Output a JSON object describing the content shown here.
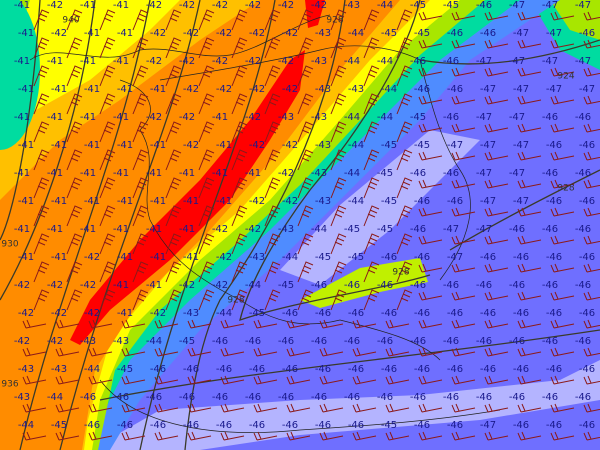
{
  "map": {
    "colors": {
      "background": "#6f6fff",
      "lavender": "#b4b4ff",
      "blue": "#4f8cff",
      "teal": "#00dca0",
      "lime": "#a8e600",
      "yellow": "#ffff00",
      "light_orange": "#ffc000",
      "orange": "#ff8c00",
      "red": "#ff0000",
      "contour": "#3a3a2a",
      "wind_barb": "#8b1a1a",
      "label": "#1a1a8c"
    },
    "contour_labels": [
      "940",
      "928",
      "924",
      "928",
      "930",
      "936",
      "928",
      "928"
    ],
    "temperature_rows": [
      [
        -41,
        -42,
        -41,
        -41,
        -42,
        -42,
        -42,
        -42,
        -42,
        -42,
        -43,
        -44,
        -45,
        -45,
        -46,
        -47,
        -47,
        -47
      ],
      [
        -41,
        -42,
        -41,
        -41,
        -42,
        -42,
        -42,
        -42,
        -42,
        -43,
        -44,
        -45,
        -45,
        -46,
        -46,
        -47,
        -47,
        -46
      ],
      [
        -41,
        -41,
        -41,
        -41,
        -42,
        -42,
        -42,
        -42,
        -42,
        -43,
        -44,
        -44,
        -46,
        -46,
        -47,
        -47,
        -47,
        -47
      ],
      [
        -41,
        -41,
        -41,
        -41,
        -41,
        -42,
        -42,
        -42,
        -42,
        -43,
        -43,
        -44,
        -46,
        -46,
        -47,
        -47,
        -47,
        -47
      ],
      [
        -41,
        -41,
        -41,
        -41,
        -42,
        -42,
        -41,
        -42,
        -43,
        -43,
        -44,
        -44,
        -45,
        -46,
        -47,
        -47,
        -46,
        -46
      ],
      [
        -41,
        -41,
        -41,
        -41,
        -41,
        -42,
        -41,
        -42,
        -42,
        -43,
        -44,
        -45,
        -45,
        -47,
        -47,
        -47,
        -46,
        -46
      ],
      [
        -41,
        -41,
        -41,
        -41,
        -41,
        -41,
        -41,
        -41,
        -42,
        -43,
        -44,
        -45,
        -46,
        -46,
        -47,
        -47,
        -46,
        -46
      ],
      [
        -41,
        -41,
        -41,
        -41,
        -41,
        -41,
        -41,
        -42,
        -42,
        -43,
        -44,
        -45,
        -46,
        -46,
        -47,
        -47,
        -46,
        -46
      ],
      [
        -41,
        -41,
        -41,
        -41,
        -41,
        -41,
        -42,
        -42,
        -43,
        -44,
        -45,
        -45,
        -46,
        -47,
        -47,
        -46,
        -46,
        -46
      ],
      [
        -41,
        -41,
        -42,
        -41,
        -41,
        -41,
        -42,
        -43,
        -44,
        -45,
        -45,
        -46,
        -46,
        -47,
        -46,
        -46,
        -46,
        -46
      ],
      [
        -42,
        -42,
        -42,
        -41,
        -41,
        -42,
        -42,
        -44,
        -45,
        -46,
        -46,
        -46,
        -46,
        -46,
        -46,
        -46,
        -46,
        -46
      ],
      [
        -42,
        -42,
        -42,
        -41,
        -42,
        -43,
        -44,
        -45,
        -46,
        -46,
        -46,
        -46,
        -46,
        -46,
        -46,
        -46,
        -46,
        -46
      ],
      [
        -42,
        -42,
        -43,
        -43,
        -44,
        -45,
        -46,
        -46,
        -46,
        -46,
        -46,
        -46,
        -46,
        -46,
        -46,
        -46,
        -46,
        -46
      ],
      [
        -43,
        -43,
        -44,
        -45,
        -46,
        -46,
        -46,
        -46,
        -46,
        -46,
        -46,
        -46,
        -46,
        -46,
        -46,
        -46,
        -46,
        -46
      ],
      [
        -43,
        -44,
        -46,
        -46,
        -46,
        -46,
        -46,
        -46,
        -46,
        -46,
        -46,
        -46,
        -46,
        -46,
        -46,
        -46,
        -46,
        -46
      ],
      [
        -44,
        -45,
        -46,
        -46,
        -46,
        -46,
        -46,
        -46,
        -46,
        -46,
        -46,
        -45,
        -46,
        -46,
        -47,
        -46,
        -46,
        -46
      ]
    ]
  }
}
